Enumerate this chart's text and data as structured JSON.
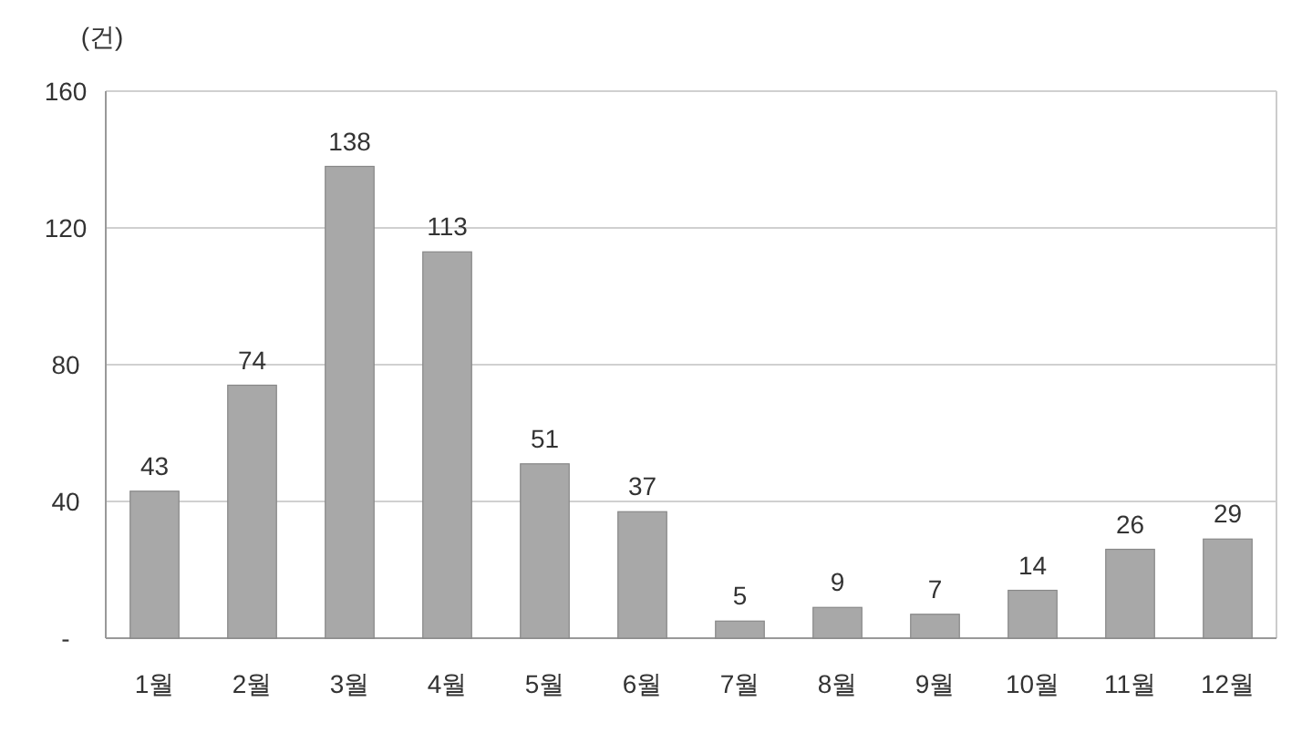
{
  "chart_data": {
    "type": "bar",
    "ylabel": "(건)",
    "categories": [
      "1월",
      "2월",
      "3월",
      "4월",
      "5월",
      "6월",
      "7월",
      "8월",
      "9월",
      "10월",
      "11월",
      "12월"
    ],
    "values": [
      43,
      74,
      138,
      113,
      51,
      37,
      5,
      9,
      7,
      14,
      26,
      29
    ],
    "color": "#a8a8a8",
    "ylim": [
      0,
      160
    ],
    "yticks": [
      {
        "value": 0,
        "label": "-"
      },
      40,
      80,
      120,
      160
    ],
    "grid": "y",
    "data_labels": true
  }
}
